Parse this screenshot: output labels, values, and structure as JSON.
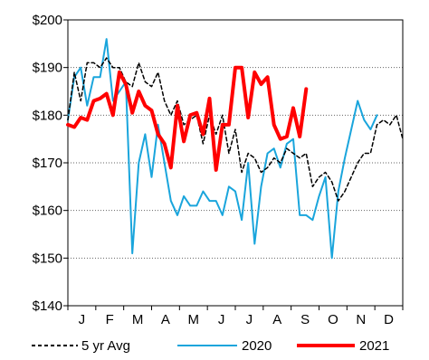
{
  "chart_data": {
    "type": "line",
    "title": "",
    "xlabel": "",
    "ylabel": "",
    "ylim": [
      140,
      200
    ],
    "y_ticks": [
      140,
      150,
      160,
      170,
      180,
      190,
      200
    ],
    "y_tick_labels": [
      "$140",
      "$150",
      "$160",
      "$170",
      "$180",
      "$190",
      "$200"
    ],
    "x_ticks": [
      "J",
      "F",
      "M",
      "A",
      "M",
      "J",
      "J",
      "A",
      "S",
      "O",
      "N",
      "D"
    ],
    "x_range": [
      1,
      53
    ],
    "grid": "horizontal dotted",
    "legend": "bottom",
    "series": [
      {
        "name": "5 yr Avg",
        "color": "#000000",
        "style": "dashed",
        "x": [
          1,
          2,
          3,
          4,
          5,
          6,
          7,
          8,
          9,
          10,
          11,
          12,
          13,
          14,
          15,
          16,
          17,
          18,
          19,
          20,
          21,
          22,
          23,
          24,
          25,
          26,
          27,
          28,
          29,
          30,
          31,
          32,
          33,
          34,
          35,
          36,
          37,
          38,
          39,
          40,
          41,
          42,
          43,
          44,
          45,
          46,
          47,
          48,
          49,
          50,
          51,
          52,
          53
        ],
        "values": [
          179,
          189,
          183,
          191,
          191,
          190,
          192,
          190,
          190,
          187,
          186,
          191,
          187,
          186,
          189,
          183,
          180,
          183,
          178,
          179,
          180,
          174,
          180,
          176,
          180,
          172,
          177,
          168,
          172,
          171,
          168,
          169,
          171,
          170,
          173,
          172,
          171,
          172,
          165,
          167,
          168,
          166,
          162,
          164,
          167,
          170,
          172,
          172,
          178,
          179,
          178,
          180,
          175
        ]
      },
      {
        "name": "2020",
        "color": "#1aa5dc",
        "style": "solid",
        "x": [
          1,
          2,
          3,
          4,
          5,
          6,
          7,
          8,
          9,
          10,
          11,
          12,
          13,
          14,
          15,
          16,
          17,
          18,
          19,
          20,
          21,
          22,
          23,
          24,
          25,
          26,
          27,
          28,
          29,
          30,
          31,
          32,
          33,
          34,
          35,
          36,
          37,
          38,
          39,
          40,
          41,
          42,
          43,
          44,
          45,
          46,
          47,
          48,
          49,
          50,
          51,
          52,
          53
        ],
        "values": [
          179,
          188,
          190,
          182,
          188,
          188,
          196,
          183,
          185,
          187,
          151,
          170,
          176,
          167,
          178,
          170,
          162,
          159,
          163,
          161,
          161,
          164,
          162,
          162,
          159,
          165,
          164,
          158,
          170,
          153,
          165,
          172,
          173,
          169,
          174,
          175,
          159,
          159,
          158,
          163,
          167,
          150,
          164,
          171,
          177,
          183,
          179,
          177,
          180,
          180,
          179,
          179,
          179
        ],
        "end_x": 49
      },
      {
        "name": "2021",
        "color": "#ff0000",
        "style": "solid",
        "x": [
          1,
          2,
          3,
          4,
          5,
          6,
          7,
          8,
          9,
          10,
          11,
          12,
          13,
          14,
          15,
          16,
          17,
          18,
          19,
          20,
          21,
          22,
          23,
          24,
          25,
          26,
          27,
          28,
          29,
          30,
          31,
          32,
          33,
          34,
          35,
          36,
          37,
          38,
          39
        ],
        "values": [
          178,
          177.5,
          179.5,
          179,
          183,
          183.5,
          184.5,
          180,
          189,
          186.5,
          180.5,
          185,
          182,
          181,
          176,
          174,
          169,
          182,
          174.5,
          180,
          180.5,
          176,
          183.5,
          168.5,
          178,
          178,
          190,
          190,
          179.5,
          189,
          186.5,
          188,
          178,
          175,
          175.5,
          181.5,
          175.5,
          185.5,
          185.5
        ],
        "end_x": 38
      }
    ]
  }
}
